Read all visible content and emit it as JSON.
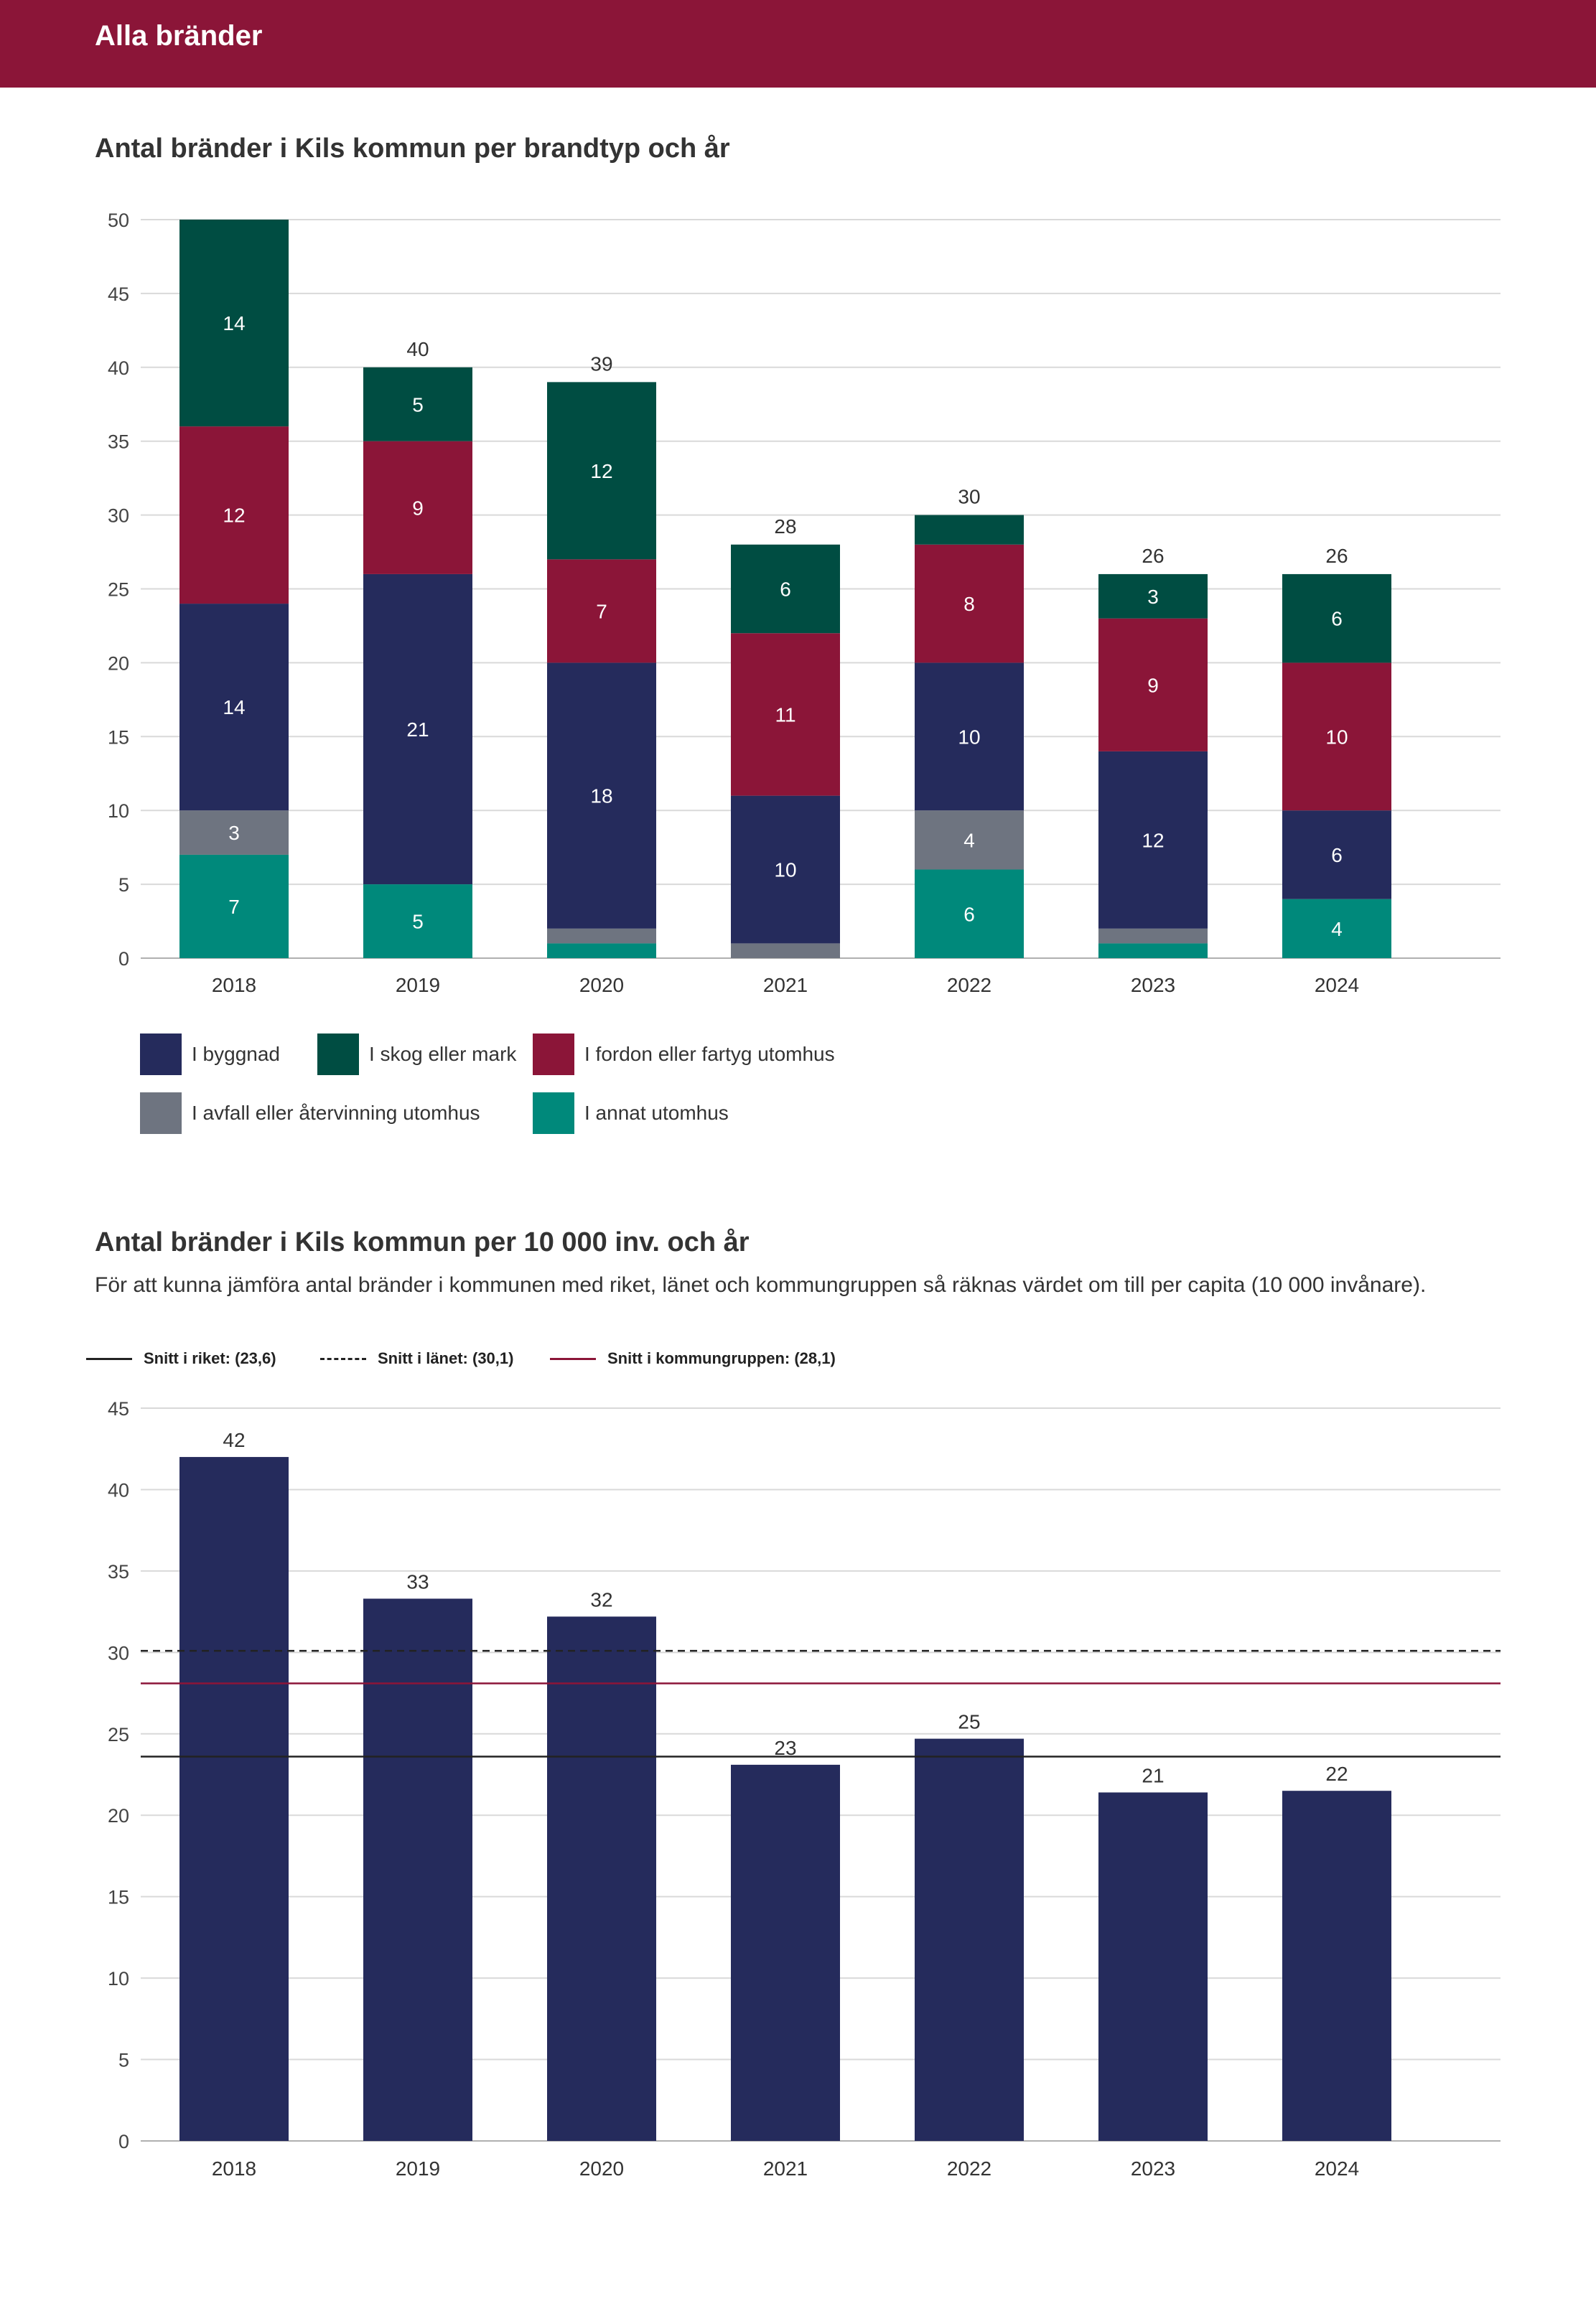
{
  "header": {
    "title": "Alla bränder"
  },
  "colors": {
    "header_bg": "#8b1538",
    "byggnad": "#252b5c",
    "skog": "#004d42",
    "fordon": "#8b1538",
    "avfall": "#6e7480",
    "annat": "#00897b",
    "bar": "#252b5c",
    "grid": "#d9d9d9"
  },
  "chart1": {
    "title": "Antal bränder i Kils kommun per brandtyp och år"
  },
  "chart2": {
    "title": "Antal bränder i Kils kommun per 10 000 inv. och år",
    "subtitle": "För att kunna jämföra antal bränder i kommunen med riket, länet och kommungruppen så räknas värdet om till per capita (10 000 invånare)."
  },
  "chart_data": [
    {
      "type": "bar",
      "stacked": true,
      "title": "Antal bränder i Kils kommun per brandtyp och år",
      "categories": [
        "2018",
        "2019",
        "2020",
        "2021",
        "2022",
        "2023",
        "2024"
      ],
      "series": [
        {
          "key": "annat",
          "name": "I annat utomhus",
          "values": [
            7,
            5,
            1,
            0,
            6,
            1,
            4
          ],
          "labels": [
            "7",
            "5",
            "",
            "",
            "6",
            "",
            "4"
          ]
        },
        {
          "key": "avfall",
          "name": "I avfall eller återvinning utomhus",
          "values": [
            3,
            0,
            1,
            1,
            4,
            1,
            0
          ],
          "labels": [
            "3",
            "",
            "",
            "",
            "4",
            "",
            ""
          ]
        },
        {
          "key": "byggnad",
          "name": "I byggnad",
          "values": [
            14,
            21,
            18,
            10,
            10,
            12,
            6
          ],
          "labels": [
            "14",
            "21",
            "18",
            "10",
            "10",
            "12",
            "6"
          ]
        },
        {
          "key": "fordon",
          "name": "I fordon eller fartyg utomhus",
          "values": [
            12,
            9,
            7,
            11,
            8,
            9,
            10
          ],
          "labels": [
            "12",
            "9",
            "7",
            "11",
            "8",
            "9",
            "10"
          ]
        },
        {
          "key": "skog",
          "name": "I skog eller mark",
          "values": [
            14,
            5,
            12,
            6,
            2,
            3,
            6
          ],
          "labels": [
            "14",
            "5",
            "12",
            "6",
            "",
            "3",
            "6"
          ]
        }
      ],
      "totals": [
        "",
        "40",
        "39",
        "28",
        "30",
        "26",
        "26"
      ],
      "ylim": [
        0,
        50
      ],
      "yticks": [
        "0",
        "5",
        "10",
        "15",
        "20",
        "25",
        "30",
        "35",
        "40",
        "45",
        "50"
      ],
      "legend": [
        {
          "key": "byggnad",
          "label": "I byggnad"
        },
        {
          "key": "skog",
          "label": "I skog eller mark"
        },
        {
          "key": "fordon",
          "label": "I fordon eller fartyg utomhus"
        },
        {
          "key": "avfall",
          "label": "I avfall eller återvinning utomhus"
        },
        {
          "key": "annat",
          "label": "I annat utomhus"
        }
      ]
    },
    {
      "type": "bar",
      "title": "Antal bränder i Kils kommun per 10 000 inv. och år",
      "categories": [
        "2018",
        "2019",
        "2020",
        "2021",
        "2022",
        "2023",
        "2024"
      ],
      "values": [
        42,
        33.3,
        32.2,
        23.1,
        24.7,
        21.4,
        21.5
      ],
      "value_labels": [
        "42",
        "33",
        "32",
        "23",
        "25",
        "21",
        "22"
      ],
      "ylim": [
        0,
        45
      ],
      "yticks": [
        "0",
        "5",
        "10",
        "15",
        "20",
        "25",
        "30",
        "35",
        "40",
        "45"
      ],
      "reference_lines": [
        {
          "name": "Snitt i riket: (23,6)",
          "value": 23.6,
          "style": "solid",
          "color": "#222222"
        },
        {
          "name": "Snitt i länet: (30,1)",
          "value": 30.1,
          "style": "dashed",
          "color": "#222222"
        },
        {
          "name": "Snitt i kommungruppen: (28,1)",
          "value": 28.1,
          "style": "solid",
          "color": "#8b1538"
        }
      ]
    }
  ]
}
